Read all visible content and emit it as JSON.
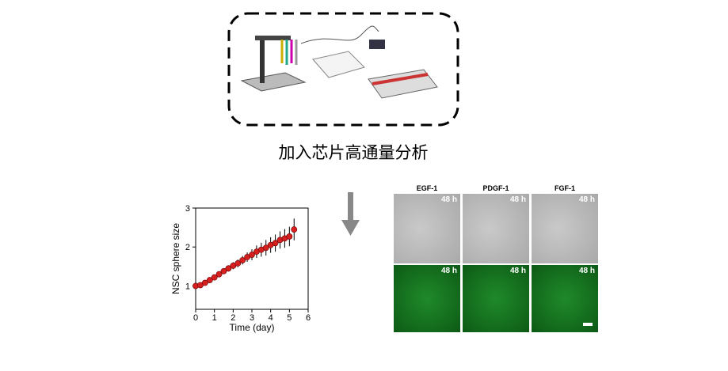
{
  "caption": "加入芯片高通量分析",
  "chart_data": {
    "type": "scatter",
    "xlabel": "Time (day)",
    "ylabel": "NSC sphere size",
    "xlim": [
      0,
      6
    ],
    "xticks": [
      0,
      1,
      2,
      3,
      4,
      5,
      6
    ],
    "ylim": [
      0.4,
      3
    ],
    "yticks": [
      1,
      2,
      3
    ],
    "x": [
      0,
      0.25,
      0.5,
      0.75,
      1,
      1.25,
      1.5,
      1.75,
      2,
      2.25,
      2.5,
      2.75,
      3,
      3.25,
      3.5,
      3.75,
      4,
      4.25,
      4.5,
      4.75,
      5,
      5.25
    ],
    "series": [
      {
        "color": "#d62020",
        "values": [
          1.0,
          1.02,
          1.08,
          1.15,
          1.22,
          1.3,
          1.38,
          1.45,
          1.52,
          1.58,
          1.66,
          1.74,
          1.8,
          1.88,
          1.93,
          1.98,
          2.05,
          2.1,
          2.18,
          2.22,
          2.27,
          2.45
        ],
        "errors": [
          0.02,
          0.03,
          0.04,
          0.04,
          0.05,
          0.06,
          0.07,
          0.08,
          0.09,
          0.1,
          0.11,
          0.12,
          0.14,
          0.16,
          0.18,
          0.2,
          0.2,
          0.22,
          0.22,
          0.24,
          0.25,
          0.28
        ]
      }
    ]
  },
  "images": {
    "columns": [
      "EGF-1",
      "PDGF-1",
      "FGF-1"
    ],
    "time_labels": [
      "48 h",
      "48 h",
      "48 h",
      "48 h",
      "48 h",
      "48 h"
    ]
  }
}
